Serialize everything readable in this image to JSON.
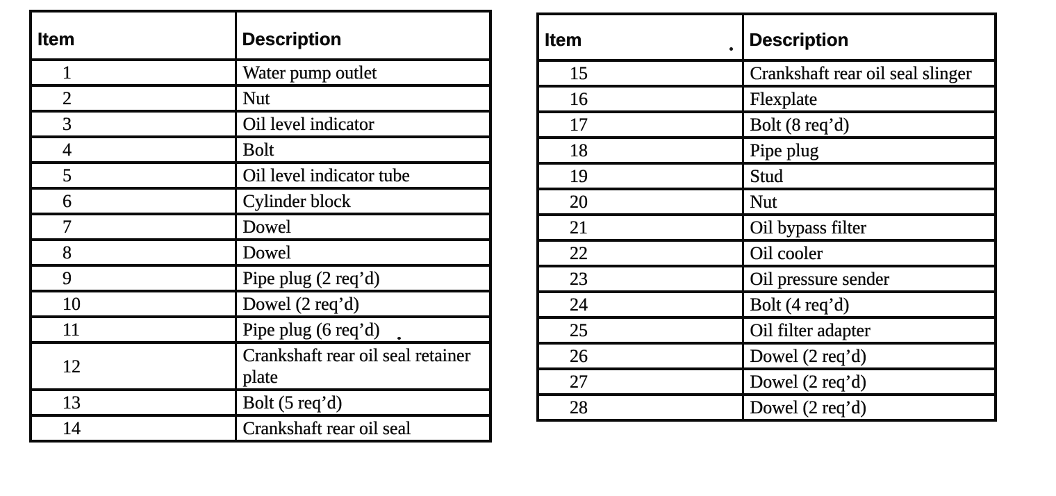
{
  "colors": {
    "ink": "#0a0a0a",
    "paper": "#ffffff"
  },
  "tables": [
    {
      "headers": {
        "item": "Item",
        "description": "Description"
      },
      "rows": [
        {
          "item": "1",
          "description": "Water pump outlet"
        },
        {
          "item": "2",
          "description": "Nut"
        },
        {
          "item": "3",
          "description": "Oil level indicator"
        },
        {
          "item": "4",
          "description": "Bolt"
        },
        {
          "item": "5",
          "description": "Oil level indicator tube"
        },
        {
          "item": "6",
          "description": "Cylinder block"
        },
        {
          "item": "7",
          "description": "Dowel"
        },
        {
          "item": "8",
          "description": "Dowel"
        },
        {
          "item": "9",
          "description": "Pipe plug (2 req’d)"
        },
        {
          "item": "10",
          "description": "Dowel (2 req’d)"
        },
        {
          "item": "11",
          "description": "Pipe plug (6 req’d)"
        },
        {
          "item": "12",
          "description": "Crankshaft rear oil seal retainer plate"
        },
        {
          "item": "13",
          "description": "Bolt (5 req’d)"
        },
        {
          "item": "14",
          "description": "Crankshaft rear oil seal"
        }
      ]
    },
    {
      "headers": {
        "item": "Item",
        "description": "Description"
      },
      "rows": [
        {
          "item": "15",
          "description": "Crankshaft rear oil seal slinger"
        },
        {
          "item": "16",
          "description": "Flexplate"
        },
        {
          "item": "17",
          "description": "Bolt (8 req’d)"
        },
        {
          "item": "18",
          "description": "Pipe plug"
        },
        {
          "item": "19",
          "description": "Stud"
        },
        {
          "item": "20",
          "description": "Nut"
        },
        {
          "item": "21",
          "description": "Oil bypass filter"
        },
        {
          "item": "22",
          "description": "Oil cooler"
        },
        {
          "item": "23",
          "description": "Oil pressure sender"
        },
        {
          "item": "24",
          "description": "Bolt (4 req’d)"
        },
        {
          "item": "25",
          "description": "Oil filter adapter"
        },
        {
          "item": "26",
          "description": "Dowel (2 req’d)"
        },
        {
          "item": "27",
          "description": "Dowel (2 req’d)"
        },
        {
          "item": "28",
          "description": "Dowel (2 req’d)"
        }
      ]
    }
  ]
}
